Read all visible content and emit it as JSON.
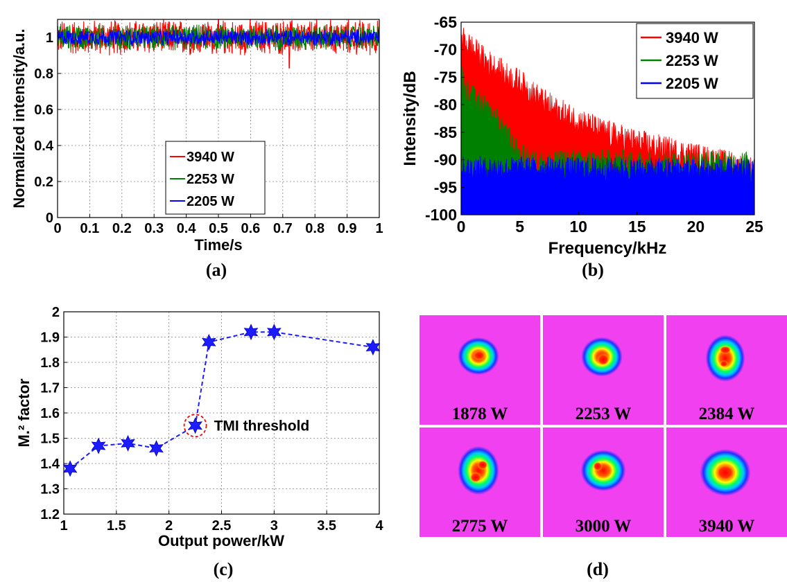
{
  "panel_labels": [
    "(a)",
    "(b)",
    "(c)",
    "(d)"
  ],
  "chart_data": [
    {
      "id": "a",
      "type": "line",
      "xlabel": "Time/s",
      "ylabel": "Normalized intensity/a.u.",
      "xlim": [
        0,
        1
      ],
      "ylim": [
        0,
        1.1
      ],
      "xticks": [
        "0",
        "0.1",
        "0.2",
        "0.3",
        "0.4",
        "0.5",
        "0.6",
        "0.7",
        "0.8",
        "0.9",
        "1"
      ],
      "yticks": [
        "0",
        "0.2",
        "0.4",
        "0.6",
        "0.8",
        "1"
      ],
      "grid": true,
      "legend_position": "center",
      "series": [
        {
          "name": "3940 W",
          "color": "#ff0000",
          "mean": 1.0,
          "low": 0.88,
          "high": 1.1,
          "dip": {
            "x": 0.72,
            "y": 0.83
          }
        },
        {
          "name": "2253 W",
          "color": "#008000",
          "mean": 1.0,
          "low": 0.91,
          "high": 1.07
        },
        {
          "name": "2205 W",
          "color": "#0000ff",
          "mean": 1.0,
          "low": 0.95,
          "high": 1.05
        }
      ]
    },
    {
      "id": "b",
      "type": "area",
      "xlabel": "Frequency/kHz",
      "ylabel": "Intensity/dB",
      "xlim": [
        0,
        25
      ],
      "ylim": [
        -100,
        -65
      ],
      "xticks": [
        "0",
        "5",
        "10",
        "15",
        "20",
        "25"
      ],
      "yticks": [
        "-65",
        "-70",
        "-75",
        "-80",
        "-85",
        "-90",
        "-95",
        "-100"
      ],
      "grid": false,
      "legend_position": "top-right",
      "series": [
        {
          "name": "3940 W",
          "color": "#ff0000",
          "x": [
            0,
            0.5,
            1,
            2,
            3,
            4,
            5,
            6,
            8,
            10,
            12,
            15,
            18,
            20,
            22,
            25
          ],
          "y": [
            -68,
            -69,
            -70,
            -72,
            -73.5,
            -75,
            -76,
            -78,
            -81,
            -83,
            -85,
            -87,
            -88.5,
            -89.5,
            -90.5,
            -92
          ]
        },
        {
          "name": "2253 W",
          "color": "#008000",
          "x": [
            0,
            0.5,
            1,
            2,
            3,
            4,
            4.5,
            5,
            6,
            25
          ],
          "y": [
            -75,
            -78,
            -79,
            -81,
            -83,
            -86,
            -88,
            -89.5,
            -90.5,
            -91
          ]
        },
        {
          "name": "2205 W",
          "color": "#0000ff",
          "x": [
            0,
            25
          ],
          "y": [
            -91.5,
            -92
          ]
        }
      ]
    },
    {
      "id": "c",
      "type": "scatter",
      "xlabel": "Output power/kW",
      "ylabel": "M.² factor",
      "xlim": [
        1,
        4
      ],
      "ylim": [
        1.2,
        2
      ],
      "xticks": [
        "1",
        "1.5",
        "2",
        "2.5",
        "3",
        "3.5",
        "4"
      ],
      "yticks": [
        "1.2",
        "1.3",
        "1.4",
        "1.5",
        "1.6",
        "1.7",
        "1.8",
        "1.9",
        "2"
      ],
      "grid": true,
      "marker": "star",
      "line": "dashed",
      "color": "#1c1cff",
      "x": [
        1.06,
        1.33,
        1.61,
        1.88,
        2.25,
        2.38,
        2.78,
        3.0,
        3.94
      ],
      "y": [
        1.38,
        1.47,
        1.48,
        1.46,
        1.55,
        1.88,
        1.92,
        1.92,
        1.86
      ],
      "annotation": {
        "text": "TMI threshold",
        "x": 2.25,
        "y": 1.55
      }
    }
  ],
  "beam_profiles": {
    "labels": [
      "1878 W",
      "2253 W",
      "2384 W",
      "2775 W",
      "3000 W",
      "3940 W"
    ],
    "background_color": "#f040f0"
  }
}
